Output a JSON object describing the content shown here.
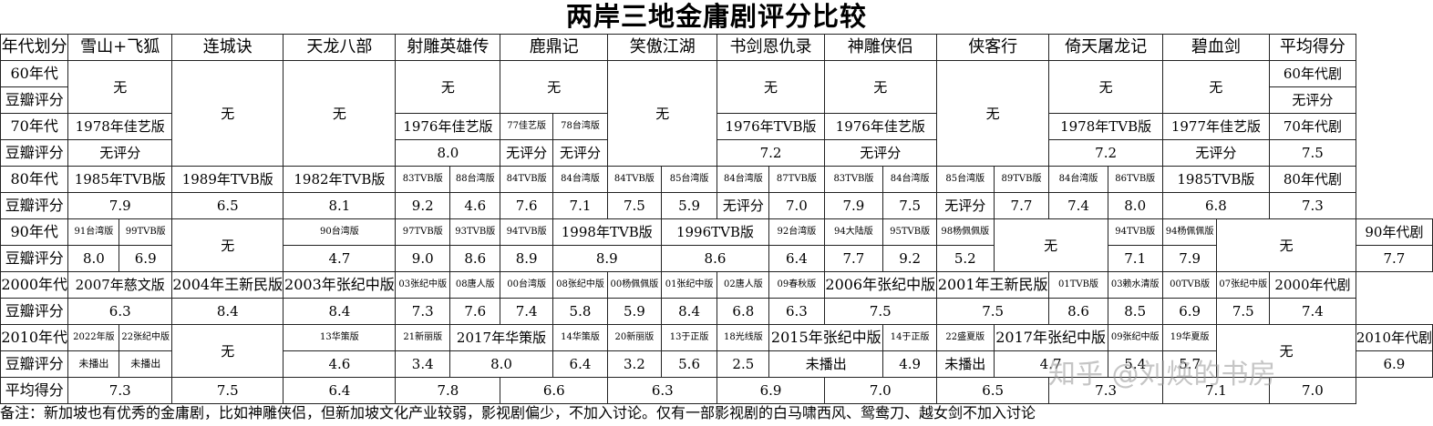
{
  "title": "两岸三地金庸剧评分比较",
  "headers": [
    "年代划分",
    "雪山+飞狐",
    "连城诀",
    "天龙八部",
    "射雕英雄传",
    "鹿鼎记",
    "笑傲江湖",
    "书剑恩仇录",
    "神雕侠侣",
    "侠客行",
    "倚天屠龙记",
    "碧血剑",
    "平均得分"
  ],
  "labels": {
    "r60": "60年代",
    "r70": "70年代",
    "r80": "80年代",
    "r90": "90年代",
    "r00": "2000年代",
    "r10": "2010年代",
    "douban": "豆瓣评分",
    "avg": "平均得分"
  },
  "none": "无",
  "no_score": "无评分",
  "not_aired": "未播出",
  "right": {
    "r60a": "60年代剧",
    "r60b": "无评分",
    "r70a": "70年代剧",
    "r70b": "7.5",
    "r80a": "80年代剧",
    "r80b": "7.3",
    "r90a": "90年代剧",
    "r90b": "7.7",
    "r00a": "2000年代剧",
    "r00b": "7.4",
    "r10a": "2010年代剧",
    "r10b": "6.9"
  },
  "c70": {
    "xs": "1978年佳艺版",
    "ld_a": "77佳艺版",
    "ld_b": "78台湾版",
    "sj": "1976年TVB版",
    "sd": "1976年佳艺版",
    "yt": "1978年TVB版",
    "bx": "1977年佳艺版",
    "sd_score": "8.0",
    "sj_score": "7.2",
    "yt_score": "7.2"
  },
  "c80": {
    "names": [
      "1985年TVB版",
      "1989年TVB版",
      "1982年TVB版",
      "83TVB版",
      "88台湾版",
      "84TVB版",
      "84台湾版",
      "84TVB版",
      "85台湾版",
      "84台湾版",
      "87TVB版",
      "83TVB版",
      "84台湾版",
      "85台湾版",
      "89TVB版",
      "84台湾版",
      "86TVB版",
      "1985TVB版"
    ],
    "scores": [
      "7.9",
      "6.5",
      "8.1",
      "9.2",
      "4.6",
      "7.6",
      "7.1",
      "7.5",
      "5.9",
      "7.0",
      "7.9",
      "7.5",
      "7.7",
      "7.4",
      "8.0",
      "6.8"
    ]
  },
  "c90": {
    "names": [
      "91台湾版",
      "99TVB版",
      "90台湾版",
      "97TVB版",
      "93TVB版",
      "94TVB版",
      "1998年TVB版",
      "1996TVB版",
      "92台湾版",
      "94大陆版",
      "95TVB版",
      "98杨佩佩版",
      "94TVB版",
      "94杨佩佩版"
    ],
    "scores": [
      "8.0",
      "6.9",
      "4.7",
      "9.0",
      "8.6",
      "8.9",
      "8.9",
      "8.6",
      "6.4",
      "7.7",
      "9.2",
      "5.2",
      "7.1",
      "7.9"
    ]
  },
  "c00": {
    "names": [
      "2007年慈文版",
      "2004年王新民版",
      "2003年张纪中版",
      "03张纪中版",
      "08唐人版",
      "00台湾版",
      "08张纪中版",
      "00杨佩佩版",
      "01张纪中版",
      "02唐人版",
      "09春秋版",
      "2006年张纪中版",
      "2001年王新民版",
      "01TVB版",
      "03赖水清版",
      "00TVB版",
      "07张纪中版"
    ],
    "scores": [
      "6.3",
      "8.4",
      "8.4",
      "7.3",
      "7.6",
      "7.4",
      "5.8",
      "5.9",
      "8.4",
      "6.8",
      "6.3",
      "7.5",
      "7.5",
      "8.6",
      "8.5",
      "6.9",
      "7.5"
    ]
  },
  "c10": {
    "names": [
      "2022年版",
      "22张纪中版",
      "13华策版",
      "21新丽版",
      "2017年华策版",
      "14华策版",
      "20新丽版",
      "13于正版",
      "18光线版",
      "2015年张纪中版",
      "14于正版",
      "22盛夏版",
      "2017年张纪中版",
      "09张纪中版",
      "19华夏版"
    ],
    "scores": [
      "4.6",
      "3.4",
      "8.0",
      "6.4",
      "3.2",
      "5.6",
      "2.5",
      "4.9",
      "4.7",
      "5.4",
      "5.7"
    ]
  },
  "avg": [
    "7.3",
    "7.5",
    "6.4",
    "7.8",
    "6.6",
    "6.3",
    "6.9",
    "7.0",
    "6.5",
    "7.3",
    "7.1",
    "7.0"
  ],
  "note": "备注：新加坡也有优秀的金庸剧，比如神雕侠侣，但新加坡文化产业较弱，影视剧偏少，不加入讨论。仅有一部影视剧的白马啸西风、鸳鸯刀、越女剑不加入讨论",
  "watermark": "知乎 @刘焕的书房"
}
